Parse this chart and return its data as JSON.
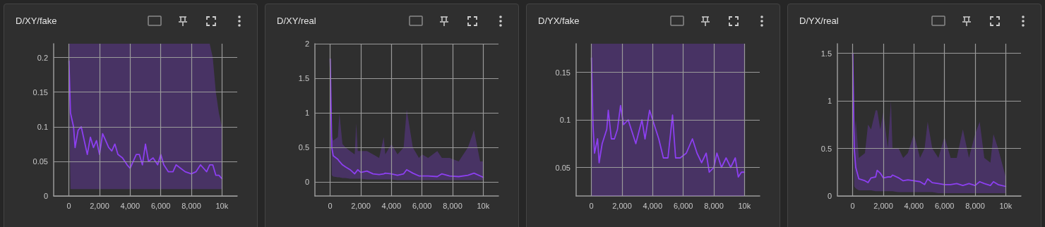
{
  "chart_data": [
    {
      "type": "line",
      "title": "D/XY/fake",
      "grid": true,
      "xlim": [
        -1000,
        11000
      ],
      "xticks": [
        {
          "value": 0,
          "label": "0"
        },
        {
          "value": 2000,
          "label": "2,000"
        },
        {
          "value": 4000,
          "label": "4,000"
        },
        {
          "value": 6000,
          "label": "6,000"
        },
        {
          "value": 8000,
          "label": "8,000"
        },
        {
          "value": 10000,
          "label": "10k"
        }
      ],
      "ylim": [
        0,
        0.22
      ],
      "yticks": [
        0,
        0.05,
        0.1,
        0.15,
        0.2
      ],
      "series": [
        {
          "color": "#8c3ff0",
          "x": [
            0,
            100,
            300,
            400,
            600,
            800,
            1000,
            1200,
            1400,
            1600,
            1800,
            2000,
            2200,
            2400,
            2600,
            2800,
            3000,
            3200,
            3500,
            3800,
            4000,
            4200,
            4400,
            4600,
            4800,
            5000,
            5200,
            5500,
            5800,
            6000,
            6200,
            6500,
            6800,
            7000,
            7300,
            7600,
            8000,
            8300,
            8600,
            8800,
            9000,
            9200,
            9400,
            9600,
            9800,
            10000
          ],
          "values": [
            0.195,
            0.12,
            0.1,
            0.07,
            0.095,
            0.1,
            0.08,
            0.06,
            0.085,
            0.07,
            0.08,
            0.06,
            0.09,
            0.08,
            0.07,
            0.065,
            0.075,
            0.06,
            0.055,
            0.045,
            0.04,
            0.05,
            0.06,
            0.06,
            0.045,
            0.075,
            0.05,
            0.055,
            0.045,
            0.06,
            0.045,
            0.035,
            0.035,
            0.045,
            0.04,
            0.035,
            0.032,
            0.035,
            0.045,
            0.04,
            0.035,
            0.045,
            0.045,
            0.03,
            0.03,
            0.025
          ],
          "lower": [
            0.14,
            0.01,
            0.01,
            0.01,
            0.01,
            0.01,
            0.01,
            0.01,
            0.01,
            0.01,
            0.01,
            0.01,
            0.01,
            0.01,
            0.01,
            0.01,
            0.01,
            0.01,
            0.01,
            0.01,
            0.01,
            0.01,
            0.01,
            0.01,
            0.01,
            0.01,
            0.01,
            0.01,
            0.01,
            0.01,
            0.01,
            0.01,
            0.01,
            0.01,
            0.01,
            0.01,
            0.01,
            0.01,
            0.01,
            0.01,
            0.01,
            0.01,
            0.01,
            0.01,
            0.01,
            0.01
          ],
          "upper": [
            0.22,
            0.22,
            0.22,
            0.22,
            0.22,
            0.22,
            0.22,
            0.22,
            0.22,
            0.22,
            0.22,
            0.22,
            0.22,
            0.22,
            0.22,
            0.22,
            0.22,
            0.22,
            0.22,
            0.22,
            0.22,
            0.22,
            0.22,
            0.22,
            0.22,
            0.22,
            0.22,
            0.22,
            0.22,
            0.22,
            0.22,
            0.22,
            0.22,
            0.22,
            0.22,
            0.22,
            0.22,
            0.22,
            0.22,
            0.22,
            0.22,
            0.22,
            0.2,
            0.15,
            0.12,
            0.1
          ]
        }
      ]
    },
    {
      "type": "line",
      "title": "D/XY/real",
      "grid": true,
      "xlim": [
        -1000,
        11000
      ],
      "xticks": [
        {
          "value": 0,
          "label": "0"
        },
        {
          "value": 2000,
          "label": "2,000"
        },
        {
          "value": 4000,
          "label": "4,000"
        },
        {
          "value": 6000,
          "label": "6,000"
        },
        {
          "value": 8000,
          "label": "8,000"
        },
        {
          "value": 10000,
          "label": "10k"
        }
      ],
      "ylim": [
        -0.2,
        2
      ],
      "yticks": [
        0,
        0.5,
        1,
        1.5,
        2
      ],
      "series": [
        {
          "color": "#8c3ff0",
          "x": [
            0,
            100,
            200,
            500,
            600,
            800,
            1000,
            1300,
            1600,
            1700,
            1800,
            2000,
            2400,
            2800,
            3200,
            3500,
            3600,
            4000,
            4400,
            4800,
            5000,
            5400,
            5800,
            6000,
            6400,
            7000,
            7300,
            7800,
            8400,
            9000,
            9400,
            9800,
            10000
          ],
          "values": [
            1.78,
            0.5,
            0.38,
            0.33,
            0.3,
            0.25,
            0.22,
            0.18,
            0.12,
            0.15,
            0.18,
            0.14,
            0.16,
            0.12,
            0.11,
            0.12,
            0.13,
            0.12,
            0.1,
            0.12,
            0.18,
            0.13,
            0.09,
            0.09,
            0.09,
            0.08,
            0.12,
            0.09,
            0.08,
            0.1,
            0.13,
            0.09,
            0.07
          ],
          "lower": [
            1.6,
            0.1,
            0.08,
            0.07,
            0.07,
            0.06,
            0.06,
            0.05,
            0.05,
            0.05,
            0.05,
            0.05,
            0.04,
            0.04,
            0.04,
            0.04,
            0.04,
            0.04,
            0.03,
            0.03,
            0.03,
            0.03,
            0.03,
            0.03,
            0.03,
            0.03,
            0.03,
            0.03,
            0.03,
            0.03,
            0.03,
            0.03,
            0.03
          ],
          "upper": [
            1.78,
            0.65,
            0.6,
            0.65,
            1.0,
            0.55,
            0.5,
            0.45,
            0.4,
            0.85,
            0.45,
            0.45,
            0.45,
            0.4,
            0.35,
            0.65,
            0.4,
            0.55,
            0.4,
            0.5,
            1.05,
            0.5,
            0.35,
            0.4,
            0.35,
            0.45,
            0.35,
            0.35,
            0.3,
            0.5,
            0.75,
            0.3,
            0.3
          ]
        }
      ]
    },
    {
      "type": "line",
      "title": "D/YX/fake",
      "grid": true,
      "xlim": [
        -1000,
        11000
      ],
      "xticks": [
        {
          "value": 0,
          "label": "0"
        },
        {
          "value": 2000,
          "label": "2,000"
        },
        {
          "value": 4000,
          "label": "4,000"
        },
        {
          "value": 6000,
          "label": "6,000"
        },
        {
          "value": 8000,
          "label": "8,000"
        },
        {
          "value": 10000,
          "label": "10k"
        }
      ],
      "ylim": [
        0.02,
        0.18
      ],
      "yticks": [
        0.05,
        0.1,
        0.15
      ],
      "series": [
        {
          "color": "#8c3ff0",
          "x": [
            0,
            100,
            200,
            400,
            500,
            700,
            1000,
            1100,
            1300,
            1500,
            1700,
            1900,
            2100,
            2400,
            2700,
            2900,
            3300,
            3500,
            3800,
            4100,
            4400,
            4700,
            5000,
            5300,
            5500,
            5800,
            6200,
            6600,
            6900,
            7200,
            7500,
            7700,
            8000,
            8200,
            8500,
            8800,
            9100,
            9400,
            9600,
            9800,
            10000
          ],
          "values": [
            0.165,
            0.095,
            0.065,
            0.08,
            0.055,
            0.075,
            0.09,
            0.11,
            0.08,
            0.08,
            0.09,
            0.115,
            0.095,
            0.1,
            0.085,
            0.075,
            0.1,
            0.08,
            0.11,
            0.095,
            0.08,
            0.06,
            0.06,
            0.105,
            0.06,
            0.06,
            0.065,
            0.08,
            0.065,
            0.055,
            0.065,
            0.045,
            0.05,
            0.065,
            0.05,
            0.06,
            0.05,
            0.06,
            0.04,
            0.045,
            0.045
          ],
          "lower": [
            0.02,
            0.02,
            0.02,
            0.02,
            0.02,
            0.02,
            0.02,
            0.02,
            0.02,
            0.02,
            0.02,
            0.02,
            0.02,
            0.02,
            0.02,
            0.02,
            0.02,
            0.02,
            0.02,
            0.02,
            0.02,
            0.02,
            0.02,
            0.02,
            0.02,
            0.02,
            0.02,
            0.02,
            0.02,
            0.02,
            0.02,
            0.02,
            0.02,
            0.02,
            0.02,
            0.02,
            0.02,
            0.02,
            0.02,
            0.02,
            0.02
          ],
          "upper": [
            0.18,
            0.18,
            0.18,
            0.18,
            0.18,
            0.18,
            0.18,
            0.18,
            0.18,
            0.18,
            0.18,
            0.18,
            0.18,
            0.18,
            0.18,
            0.18,
            0.18,
            0.18,
            0.18,
            0.18,
            0.18,
            0.18,
            0.18,
            0.18,
            0.18,
            0.18,
            0.18,
            0.18,
            0.18,
            0.18,
            0.18,
            0.18,
            0.18,
            0.18,
            0.18,
            0.18,
            0.18,
            0.18,
            0.18,
            0.18,
            0.18
          ]
        }
      ]
    },
    {
      "type": "line",
      "title": "D/YX/real",
      "grid": true,
      "xlim": [
        -1000,
        11000
      ],
      "xticks": [
        {
          "value": 0,
          "label": "0"
        },
        {
          "value": 2000,
          "label": "2,000"
        },
        {
          "value": 4000,
          "label": "4,000"
        },
        {
          "value": 6000,
          "label": "6,000"
        },
        {
          "value": 8000,
          "label": "8,000"
        },
        {
          "value": 10000,
          "label": "10k"
        }
      ],
      "ylim": [
        0,
        1.6
      ],
      "yticks": [
        0,
        0.5,
        1,
        1.5
      ],
      "series": [
        {
          "color": "#8c3ff0",
          "x": [
            0,
            100,
            200,
            400,
            800,
            1000,
            1200,
            1500,
            1600,
            1800,
            2000,
            2300,
            2500,
            2600,
            3000,
            3300,
            3600,
            4000,
            4400,
            4700,
            4900,
            5200,
            5600,
            6000,
            6400,
            6800,
            7200,
            7600,
            8000,
            8300,
            8600,
            9000,
            9200,
            9500,
            10000
          ],
          "values": [
            1.5,
            0.5,
            0.3,
            0.18,
            0.16,
            0.14,
            0.19,
            0.2,
            0.27,
            0.24,
            0.19,
            0.2,
            0.2,
            0.22,
            0.19,
            0.16,
            0.17,
            0.16,
            0.15,
            0.12,
            0.18,
            0.14,
            0.13,
            0.12,
            0.12,
            0.13,
            0.11,
            0.13,
            0.11,
            0.15,
            0.13,
            0.11,
            0.15,
            0.12,
            0.1
          ],
          "lower": [
            1.3,
            0.1,
            0.08,
            0.06,
            0.06,
            0.06,
            0.06,
            0.05,
            0.05,
            0.05,
            0.05,
            0.05,
            0.05,
            0.05,
            0.04,
            0.04,
            0.04,
            0.04,
            0.04,
            0.04,
            0.04,
            0.04,
            0.03,
            0.03,
            0.03,
            0.03,
            0.03,
            0.03,
            0.03,
            0.03,
            0.03,
            0.03,
            0.03,
            0.03,
            0.03
          ],
          "upper": [
            1.5,
            0.6,
            0.8,
            0.4,
            0.45,
            0.75,
            0.7,
            0.9,
            0.9,
            0.7,
            0.88,
            0.5,
            1.0,
            0.5,
            0.5,
            0.4,
            0.45,
            0.65,
            0.4,
            0.5,
            0.78,
            0.5,
            0.4,
            0.62,
            0.4,
            0.4,
            0.7,
            0.4,
            0.65,
            0.78,
            0.4,
            0.35,
            0.65,
            0.5,
            0.2
          ]
        }
      ]
    }
  ]
}
